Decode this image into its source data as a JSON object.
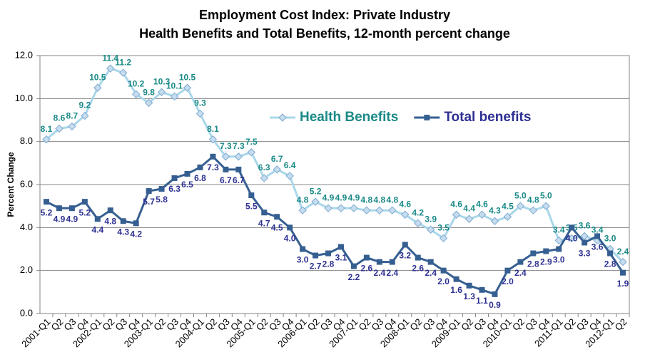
{
  "chart_data": {
    "type": "line",
    "title": "Employment Cost Index: Private Industry",
    "subtitle": "Health Benefits and Total Benefits, 12-month percent change",
    "y_label": "Percent Change",
    "categories": [
      "2001-Q1",
      "Q2",
      "Q3",
      "Q4",
      "2002-Q1",
      "Q2",
      "Q3",
      "Q4",
      "2003-Q1",
      "Q2",
      "Q3",
      "Q4",
      "2004-Q1",
      "Q2",
      "Q3",
      "Q4",
      "2005-Q1",
      "Q2",
      "Q3",
      "Q4",
      "2006-Q1",
      "Q2",
      "Q3",
      "Q4",
      "2007-Q1",
      "Q2",
      "Q3",
      "Q4",
      "2008-Q1",
      "Q2",
      "Q3",
      "Q4",
      "2009-Q1",
      "Q2",
      "Q3",
      "Q4",
      "2010-Q1",
      "Q2",
      "Q3",
      "Q4",
      "2011-Q1",
      "Q2",
      "Q3",
      "Q4",
      "2012-Q1",
      "Q2"
    ],
    "series": [
      {
        "name": "Health Benefits",
        "color": "#a9d7ea",
        "marker_color": "#7ea9cf",
        "label_color": "#1a8a86",
        "marker": "diamond",
        "values": [
          8.1,
          8.6,
          8.7,
          9.2,
          10.5,
          11.4,
          11.2,
          10.2,
          9.8,
          10.3,
          10.1,
          10.5,
          9.3,
          8.1,
          7.3,
          7.3,
          7.5,
          6.3,
          6.7,
          6.4,
          4.8,
          5.2,
          4.9,
          4.9,
          4.9,
          4.8,
          4.8,
          4.8,
          4.6,
          4.2,
          3.9,
          3.5,
          4.6,
          4.4,
          4.6,
          4.3,
          4.5,
          5.0,
          4.8,
          5.0,
          3.4,
          3.5,
          3.6,
          3.4,
          3.0,
          2.4
        ],
        "value_labels": [
          "8.1",
          "8.6",
          "8.7",
          "9.2",
          "10.5",
          "11.4",
          "11.2",
          "10.2",
          "9.8",
          "10.3",
          "10.1",
          "10.5",
          "9.3",
          "8.1",
          "7.3",
          "7.3",
          "7.5",
          "6.3",
          "6.7",
          "6.4",
          "4.8",
          "5.2",
          "4.9",
          "4.9",
          "4.9",
          "4.8",
          "4.8",
          "4.8",
          "4.6",
          "4.2",
          "3.9",
          "3.5",
          "4.6",
          "4.4",
          "4.6",
          "4.3",
          "4.5",
          "5.0",
          "4.8",
          "5.0",
          "3.4",
          "3.5",
          "3.6",
          "3.4",
          "3.0",
          "2.4"
        ]
      },
      {
        "name": "Total benefits",
        "color": "#365f91",
        "marker_color": "#365f91",
        "label_color": "#2e3192",
        "marker": "square",
        "values": [
          5.2,
          4.9,
          4.9,
          5.2,
          4.4,
          4.8,
          4.3,
          4.2,
          5.7,
          5.8,
          6.3,
          6.5,
          6.8,
          7.3,
          6.7,
          6.7,
          5.5,
          4.7,
          4.5,
          4.0,
          3.0,
          2.7,
          2.8,
          3.1,
          2.2,
          2.6,
          2.4,
          2.4,
          3.2,
          2.6,
          2.4,
          2.0,
          1.6,
          1.3,
          1.1,
          0.9,
          2.0,
          2.4,
          2.8,
          2.9,
          3.0,
          4.0,
          3.3,
          3.6,
          2.8,
          1.9
        ],
        "value_labels": [
          "5.2",
          "4.9",
          "4.9",
          "5.2",
          "4.4",
          "4.8",
          "4.3",
          "4.2",
          "5.7",
          "5.8",
          "6.3",
          "6.5",
          "6.8",
          "7.3",
          "6.7",
          "6.7",
          "5.5",
          "4.7",
          "4.5",
          "4.0",
          "3.0",
          "2.7",
          "2.8",
          "3.1",
          "2.2",
          "2.6",
          "2.4",
          "2.4",
          "3.2",
          "2.6",
          "2.4",
          "2.0",
          "1.6",
          "1.3",
          "1.1",
          "0.9",
          "2.0",
          "2.4",
          "2.8",
          "2.9",
          "3.0",
          "4.0",
          "3.3",
          "3.6",
          "2.8",
          "1.9"
        ]
      }
    ],
    "ylim": [
      0,
      12
    ],
    "yticks": [
      {
        "value": 0,
        "label": "0.0"
      },
      {
        "value": 2,
        "label": "2.0"
      },
      {
        "value": 4,
        "label": "4.0"
      },
      {
        "value": 6,
        "label": "6.0"
      },
      {
        "value": 8,
        "label": "8.0"
      },
      {
        "value": 10,
        "label": "10.0"
      },
      {
        "value": 12,
        "label": "12.0"
      }
    ],
    "grid": true,
    "legend": "center"
  }
}
